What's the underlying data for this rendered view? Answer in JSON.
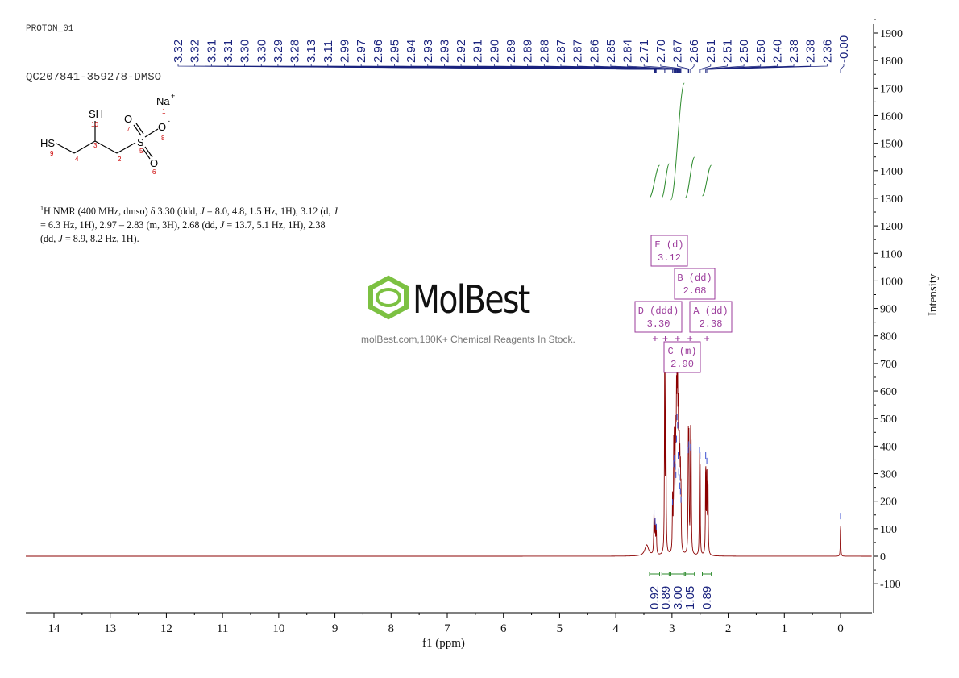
{
  "header": {
    "title": "PROTON_01",
    "sample_id": "QC207841-359278-DMSO"
  },
  "structure": {
    "atoms": [
      {
        "label": "Na",
        "charge": "+",
        "number": "1"
      },
      {
        "label": "SH",
        "number": "10"
      },
      {
        "label": "HS",
        "number": "9"
      },
      {
        "label": "O",
        "number": "7"
      },
      {
        "label": "O",
        "charge": "-",
        "number": "8"
      },
      {
        "label": "S",
        "number": "5"
      },
      {
        "label": "O",
        "number": "6"
      }
    ],
    "carbon_numbers": [
      "4",
      "3",
      "2"
    ]
  },
  "description": {
    "sup": "1",
    "text_html": "H NMR (400 MHz, dmso) δ 3.30 (ddd, <i>J</i> = 8.0, 4.8, 1.5 Hz, 1H), 3.12 (d, <i>J</i> = 6.3 Hz, 1H), 2.97 – 2.83 (m, 3H), 2.68 (dd, <i>J</i> = 13.7, 5.1 Hz, 1H), 2.38 (dd, <i>J</i> = 8.9, 8.2 Hz, 1H)."
  },
  "watermark": {
    "brand": "MolBest",
    "tagline": "molBest.com,180K+ Chemical Reagents In Stock."
  },
  "colors": {
    "spectrum": "#8b0000",
    "integral": "#2e8b2e",
    "peak_label": "#1a237e",
    "multiplet": "#9b3b9b",
    "logo": "#7cc142"
  },
  "chart_data": {
    "type": "line",
    "title": "",
    "xlabel": "f1 (ppm)",
    "ylabel": "Intensity",
    "xlim": [
      14.5,
      -0.55
    ],
    "ylim": [
      -200,
      1950
    ],
    "x_ticks": [
      14,
      13,
      12,
      11,
      10,
      9,
      8,
      7,
      6,
      5,
      4,
      3,
      2,
      1,
      0
    ],
    "y_ticks": [
      -100,
      0,
      100,
      200,
      300,
      400,
      500,
      600,
      700,
      800,
      900,
      1000,
      1100,
      1200,
      1300,
      1400,
      1500,
      1600,
      1700,
      1800,
      1900
    ],
    "peaks": [
      {
        "ppm": 3.45,
        "height": 40,
        "width": 0.04
      },
      {
        "ppm": 3.32,
        "height": 150,
        "width": 0.006
      },
      {
        "ppm": 3.3,
        "height": 120,
        "width": 0.006
      },
      {
        "ppm": 3.28,
        "height": 100,
        "width": 0.006
      },
      {
        "ppm": 3.13,
        "height": 720,
        "width": 0.005
      },
      {
        "ppm": 3.11,
        "height": 700,
        "width": 0.005
      },
      {
        "ppm": 2.99,
        "height": 190,
        "width": 0.005
      },
      {
        "ppm": 2.97,
        "height": 330,
        "width": 0.005
      },
      {
        "ppm": 2.96,
        "height": 350,
        "width": 0.005
      },
      {
        "ppm": 2.94,
        "height": 320,
        "width": 0.005
      },
      {
        "ppm": 2.93,
        "height": 290,
        "width": 0.005
      },
      {
        "ppm": 2.92,
        "height": 420,
        "width": 0.005
      },
      {
        "ppm": 2.91,
        "height": 500,
        "width": 0.005
      },
      {
        "ppm": 2.9,
        "height": 470,
        "width": 0.005
      },
      {
        "ppm": 2.89,
        "height": 360,
        "width": 0.005
      },
      {
        "ppm": 2.88,
        "height": 300,
        "width": 0.005
      },
      {
        "ppm": 2.87,
        "height": 280,
        "width": 0.005
      },
      {
        "ppm": 2.86,
        "height": 250,
        "width": 0.005
      },
      {
        "ppm": 2.85,
        "height": 230,
        "width": 0.005
      },
      {
        "ppm": 2.84,
        "height": 200,
        "width": 0.005
      },
      {
        "ppm": 2.71,
        "height": 380,
        "width": 0.005
      },
      {
        "ppm": 2.7,
        "height": 400,
        "width": 0.005
      },
      {
        "ppm": 2.67,
        "height": 390,
        "width": 0.005
      },
      {
        "ppm": 2.66,
        "height": 370,
        "width": 0.005
      },
      {
        "ppm": 2.51,
        "height": 380,
        "width": 0.004
      },
      {
        "ppm": 2.5,
        "height": 360,
        "width": 0.004
      },
      {
        "ppm": 2.4,
        "height": 360,
        "width": 0.005
      },
      {
        "ppm": 2.38,
        "height": 340,
        "width": 0.005
      },
      {
        "ppm": 2.36,
        "height": 300,
        "width": 0.005
      },
      {
        "ppm": 0.0,
        "height": 140,
        "width": 0.004
      }
    ],
    "peak_labels": [
      "3.32",
      "3.32",
      "3.31",
      "3.31",
      "3.30",
      "3.30",
      "3.29",
      "3.28",
      "3.13",
      "3.11",
      "2.99",
      "2.97",
      "2.96",
      "2.95",
      "2.94",
      "2.93",
      "2.93",
      "2.92",
      "2.91",
      "2.90",
      "2.89",
      "2.89",
      "2.88",
      "2.87",
      "2.87",
      "2.86",
      "2.85",
      "2.84",
      "2.71",
      "2.70",
      "2.67",
      "2.66",
      "2.51",
      "2.51",
      "2.50",
      "2.50",
      "2.40",
      "2.38",
      "2.38",
      "2.36",
      "-0.00"
    ],
    "peak_label_positions": [
      3.32,
      3.32,
      3.31,
      3.31,
      3.3,
      3.3,
      3.29,
      3.28,
      3.13,
      3.11,
      2.99,
      2.97,
      2.96,
      2.95,
      2.94,
      2.93,
      2.93,
      2.92,
      2.91,
      2.9,
      2.89,
      2.89,
      2.88,
      2.87,
      2.87,
      2.86,
      2.85,
      2.84,
      2.71,
      2.7,
      2.67,
      2.66,
      2.51,
      2.51,
      2.5,
      2.5,
      2.4,
      2.38,
      2.38,
      2.36,
      0.0
    ],
    "integrals": [
      {
        "from": 3.4,
        "to": 3.22,
        "value": "0.92"
      },
      {
        "from": 3.18,
        "to": 3.05,
        "value": "0.89"
      },
      {
        "from": 3.02,
        "to": 2.78,
        "value": "3.00"
      },
      {
        "from": 2.76,
        "to": 2.6,
        "value": "1.05"
      },
      {
        "from": 2.46,
        "to": 2.3,
        "value": "0.89"
      }
    ],
    "multiplets": [
      {
        "id": "E",
        "type": "d",
        "shift": "3.12",
        "ppm": 3.12
      },
      {
        "id": "B",
        "type": "dd",
        "shift": "2.68",
        "ppm": 2.68
      },
      {
        "id": "D",
        "type": "ddd",
        "shift": "3.30",
        "ppm": 3.3
      },
      {
        "id": "A",
        "type": "dd",
        "shift": "2.38",
        "ppm": 2.38
      },
      {
        "id": "C",
        "type": "m",
        "shift": "2.90",
        "ppm": 2.9
      }
    ]
  }
}
